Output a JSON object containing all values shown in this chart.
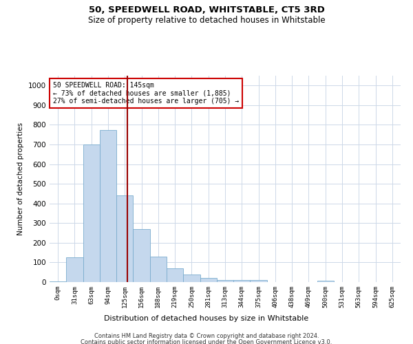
{
  "title": "50, SPEEDWELL ROAD, WHITSTABLE, CT5 3RD",
  "subtitle": "Size of property relative to detached houses in Whitstable",
  "xlabel": "Distribution of detached houses by size in Whitstable",
  "ylabel": "Number of detached properties",
  "categories": [
    "0sqm",
    "31sqm",
    "63sqm",
    "94sqm",
    "125sqm",
    "156sqm",
    "188sqm",
    "219sqm",
    "250sqm",
    "281sqm",
    "313sqm",
    "344sqm",
    "375sqm",
    "406sqm",
    "438sqm",
    "469sqm",
    "500sqm",
    "531sqm",
    "563sqm",
    "594sqm",
    "625sqm"
  ],
  "values": [
    5,
    125,
    700,
    775,
    440,
    270,
    130,
    70,
    38,
    20,
    10,
    10,
    10,
    0,
    0,
    0,
    8,
    0,
    0,
    0,
    0
  ],
  "bar_color": "#c5d8ed",
  "bar_edge_color": "#7aacce",
  "bar_width": 1.0,
  "vline_color": "#990000",
  "annotation_line1": "50 SPEEDWELL ROAD: 145sqm",
  "annotation_line2": "← 73% of detached houses are smaller (1,885)",
  "annotation_line3": "27% of semi-detached houses are larger (705) →",
  "annotation_box_color": "#ffffff",
  "annotation_box_edge_color": "#cc0000",
  "ylim": [
    0,
    1050
  ],
  "yticks": [
    0,
    100,
    200,
    300,
    400,
    500,
    600,
    700,
    800,
    900,
    1000
  ],
  "footer_line1": "Contains HM Land Registry data © Crown copyright and database right 2024.",
  "footer_line2": "Contains public sector information licensed under the Open Government Licence v3.0.",
  "background_color": "#ffffff",
  "grid_color": "#cdd8e8"
}
